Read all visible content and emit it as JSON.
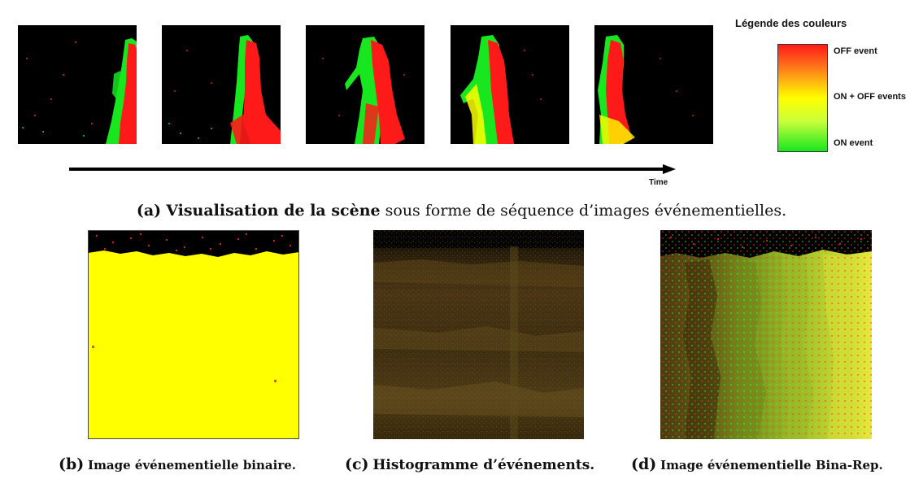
{
  "figure_a": {
    "frames": [
      {
        "name": "frame-1"
      },
      {
        "name": "frame-2"
      },
      {
        "name": "frame-3"
      },
      {
        "name": "frame-4"
      },
      {
        "name": "frame-5"
      }
    ],
    "time_label": "Time",
    "caption_tag": "(a)",
    "caption_bold": "Visualisation de la scène",
    "caption_rest": " sous forme de séquence d’images événementielles."
  },
  "legend": {
    "title": "Légende des couleurs",
    "labels": {
      "off": "OFF event",
      "on_off": "ON + OFF events",
      "on": "ON event"
    },
    "colors": {
      "off": "#ff1a1a",
      "on_off": "#ffff00",
      "on": "#18e61e"
    }
  },
  "figure_b": {
    "caption_tag": "(b)",
    "caption_text": "Image événementielle binaire.",
    "fill_color": "#ffff00"
  },
  "figure_c": {
    "caption_tag": "(c)",
    "caption_text": "Histogramme d’événements."
  },
  "figure_d": {
    "caption_tag": "(d)",
    "caption_text": "Image événementielle Bina-Rep."
  }
}
